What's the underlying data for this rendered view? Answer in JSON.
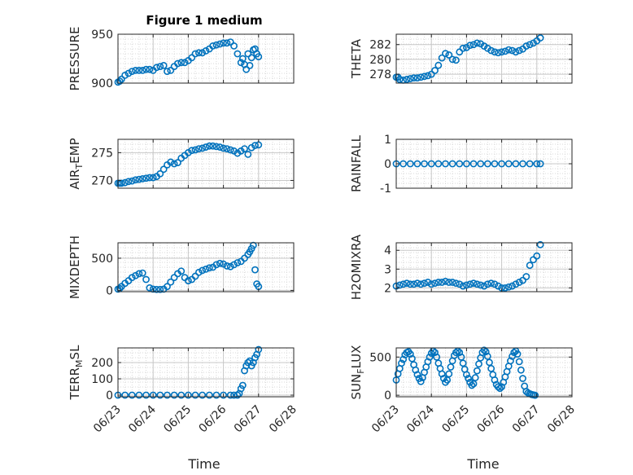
{
  "figure": {
    "title": "Figure 1 medium",
    "xlabel": "Time"
  },
  "chart_data": [
    {
      "type": "scatter",
      "id": "pressure",
      "ylabel": "PRESSURE",
      "ylim": [
        900,
        950
      ],
      "yticks": [
        900,
        950
      ],
      "x": [
        0,
        0.05,
        0.1,
        0.2,
        0.3,
        0.4,
        0.5,
        0.6,
        0.7,
        0.8,
        0.9,
        1.0,
        1.1,
        1.2,
        1.3,
        1.4,
        1.5,
        1.6,
        1.7,
        1.8,
        1.9,
        2.0,
        2.1,
        2.2,
        2.3,
        2.4,
        2.5,
        2.6,
        2.7,
        2.8,
        2.9,
        3.0,
        3.1,
        3.2,
        3.3,
        3.4,
        3.5,
        3.55,
        3.6,
        3.65,
        3.7,
        3.75,
        3.8,
        3.85,
        3.9,
        3.95,
        4.0
      ],
      "y": [
        901,
        902,
        904,
        908,
        910,
        912,
        913,
        913,
        913,
        914,
        914,
        913,
        916,
        917,
        918,
        912,
        913,
        917,
        920,
        921,
        921,
        923,
        926,
        930,
        931,
        931,
        933,
        935,
        938,
        939,
        940,
        941,
        941,
        942,
        938,
        930,
        921,
        925,
        919,
        914,
        930,
        918,
        926,
        934,
        935,
        930,
        927
      ],
      "ylabel_sub": ""
    },
    {
      "type": "scatter",
      "id": "theta",
      "ylabel": "THETA",
      "ylim": [
        276.8,
        283.4
      ],
      "yticks": [
        278,
        280,
        282
      ],
      "x": [
        0,
        0.05,
        0.1,
        0.2,
        0.3,
        0.4,
        0.5,
        0.6,
        0.7,
        0.8,
        0.9,
        1.0,
        1.1,
        1.2,
        1.3,
        1.4,
        1.5,
        1.6,
        1.7,
        1.8,
        1.9,
        2.0,
        2.1,
        2.2,
        2.3,
        2.4,
        2.5,
        2.6,
        2.7,
        2.8,
        2.9,
        3.0,
        3.1,
        3.2,
        3.3,
        3.4,
        3.5,
        3.6,
        3.7,
        3.8,
        3.9,
        4.0,
        4.1
      ],
      "y": [
        277.6,
        277.6,
        277.3,
        277.2,
        277.3,
        277.4,
        277.5,
        277.5,
        277.6,
        277.7,
        277.8,
        278.0,
        278.5,
        279.2,
        280.2,
        280.8,
        280.6,
        280.0,
        279.9,
        281.0,
        281.5,
        281.6,
        281.9,
        282.0,
        282.2,
        282.1,
        281.8,
        281.5,
        281.2,
        281.0,
        280.9,
        281.0,
        281.1,
        281.3,
        281.2,
        281.0,
        281.2,
        281.4,
        281.8,
        282.0,
        282.2,
        282.5,
        282.9
      ]
    },
    {
      "type": "scatter",
      "id": "air_temp",
      "ylabel": "AIR",
      "ylabel_sub": "T",
      "ylabel_rest": "EMP",
      "ylim": [
        268.6,
        277.4
      ],
      "yticks": [
        270,
        275
      ],
      "x": [
        0,
        0.05,
        0.1,
        0.2,
        0.3,
        0.4,
        0.5,
        0.6,
        0.7,
        0.8,
        0.9,
        1.0,
        1.1,
        1.2,
        1.3,
        1.4,
        1.5,
        1.6,
        1.7,
        1.8,
        1.9,
        2.0,
        2.1,
        2.2,
        2.3,
        2.4,
        2.5,
        2.6,
        2.7,
        2.8,
        2.9,
        3.0,
        3.1,
        3.2,
        3.3,
        3.4,
        3.5,
        3.6,
        3.7,
        3.8,
        3.9,
        4.0
      ],
      "y": [
        269.5,
        269.5,
        269.5,
        269.6,
        269.8,
        269.9,
        270.1,
        270.2,
        270.3,
        270.4,
        270.5,
        270.5,
        270.7,
        271.2,
        272.0,
        272.8,
        273.3,
        273.0,
        273.2,
        274.0,
        274.5,
        275.0,
        275.4,
        275.5,
        275.7,
        275.8,
        276.0,
        276.2,
        276.2,
        276.1,
        276.0,
        275.8,
        275.7,
        275.5,
        275.3,
        274.9,
        275.3,
        275.7,
        274.7,
        275.9,
        276.3,
        276.4
      ]
    },
    {
      "type": "scatter",
      "id": "rainfall",
      "ylabel": "RAINFALL",
      "ylim": [
        -1,
        1
      ],
      "yticks": [
        -1,
        0,
        1
      ],
      "x": [
        0,
        0.2,
        0.4,
        0.6,
        0.8,
        1.0,
        1.2,
        1.4,
        1.6,
        1.8,
        2.0,
        2.2,
        2.4,
        2.6,
        2.8,
        3.0,
        3.2,
        3.4,
        3.6,
        3.8,
        4.0,
        4.1
      ],
      "y": [
        0,
        0,
        0,
        0,
        0,
        0,
        0,
        0,
        0,
        0,
        0,
        0,
        0,
        0,
        0,
        0,
        0,
        0,
        0,
        0,
        0,
        0
      ]
    },
    {
      "type": "scatter",
      "id": "mixdepth",
      "ylabel": "MIXDEPTH",
      "ylim": [
        -20,
        740
      ],
      "yticks": [
        0,
        500
      ],
      "x": [
        0,
        0.05,
        0.1,
        0.2,
        0.3,
        0.4,
        0.5,
        0.6,
        0.7,
        0.8,
        0.9,
        1.0,
        1.1,
        1.2,
        1.3,
        1.4,
        1.5,
        1.6,
        1.7,
        1.8,
        1.9,
        2.0,
        2.1,
        2.2,
        2.3,
        2.4,
        2.5,
        2.6,
        2.7,
        2.8,
        2.9,
        3.0,
        3.1,
        3.2,
        3.3,
        3.4,
        3.5,
        3.6,
        3.7,
        3.75,
        3.8,
        3.85,
        3.9,
        3.95,
        4.0
      ],
      "y": [
        20,
        30,
        60,
        110,
        150,
        200,
        230,
        260,
        270,
        170,
        40,
        20,
        15,
        15,
        20,
        60,
        130,
        200,
        260,
        300,
        200,
        150,
        170,
        220,
        280,
        310,
        330,
        350,
        360,
        400,
        420,
        410,
        380,
        370,
        400,
        430,
        450,
        500,
        560,
        600,
        650,
        700,
        320,
        100,
        60
      ]
    },
    {
      "type": "scatter",
      "id": "h2omixra",
      "ylabel": "H2OMIXRA",
      "ylim": [
        1.8,
        4.4
      ],
      "yticks": [
        2,
        3,
        4
      ],
      "x": [
        0,
        0.1,
        0.2,
        0.3,
        0.4,
        0.5,
        0.6,
        0.7,
        0.8,
        0.9,
        1.0,
        1.1,
        1.2,
        1.3,
        1.4,
        1.5,
        1.6,
        1.7,
        1.8,
        1.9,
        2.0,
        2.1,
        2.2,
        2.3,
        2.4,
        2.5,
        2.6,
        2.7,
        2.8,
        2.9,
        3.0,
        3.1,
        3.2,
        3.3,
        3.4,
        3.5,
        3.6,
        3.7,
        3.8,
        3.9,
        4.0,
        4.1
      ],
      "y": [
        2.1,
        2.15,
        2.2,
        2.25,
        2.2,
        2.2,
        2.25,
        2.2,
        2.25,
        2.3,
        2.2,
        2.25,
        2.3,
        2.3,
        2.35,
        2.3,
        2.3,
        2.25,
        2.2,
        2.1,
        2.15,
        2.2,
        2.25,
        2.2,
        2.15,
        2.1,
        2.2,
        2.25,
        2.2,
        2.1,
        2.0,
        2.0,
        2.05,
        2.1,
        2.2,
        2.3,
        2.4,
        2.6,
        3.2,
        3.5,
        3.7,
        4.3
      ]
    },
    {
      "type": "scatter",
      "id": "terr_msl",
      "ylabel": "TERR",
      "ylabel_sub": "M",
      "ylabel_rest": "SL",
      "ylim": [
        -10,
        290
      ],
      "yticks": [
        0,
        100,
        200
      ],
      "x": [
        0,
        0.2,
        0.4,
        0.6,
        0.8,
        1.0,
        1.2,
        1.4,
        1.6,
        1.8,
        2.0,
        2.2,
        2.4,
        2.6,
        2.8,
        3.0,
        3.2,
        3.3,
        3.4,
        3.45,
        3.5,
        3.55,
        3.6,
        3.65,
        3.7,
        3.75,
        3.8,
        3.85,
        3.9,
        3.95,
        4.0
      ],
      "y": [
        0,
        0,
        0,
        0,
        0,
        0,
        0,
        0,
        0,
        0,
        0,
        0,
        0,
        0,
        0,
        0,
        0,
        0,
        0,
        10,
        40,
        60,
        150,
        180,
        200,
        210,
        180,
        200,
        230,
        250,
        280
      ]
    },
    {
      "type": "scatter",
      "id": "sunflux",
      "ylabel": "SUN",
      "ylabel_sub": "F",
      "ylabel_rest": "LUX",
      "ylim": [
        -20,
        620
      ],
      "yticks": [
        0,
        500
      ],
      "x": [
        0,
        0.05,
        0.1,
        0.15,
        0.2,
        0.25,
        0.3,
        0.35,
        0.4,
        0.45,
        0.5,
        0.55,
        0.6,
        0.65,
        0.7,
        0.75,
        0.8,
        0.85,
        0.9,
        0.95,
        1.0,
        1.05,
        1.1,
        1.15,
        1.2,
        1.25,
        1.3,
        1.35,
        1.4,
        1.45,
        1.5,
        1.55,
        1.6,
        1.65,
        1.7,
        1.75,
        1.8,
        1.85,
        1.9,
        1.95,
        2.0,
        2.05,
        2.1,
        2.15,
        2.2,
        2.25,
        2.3,
        2.35,
        2.4,
        2.45,
        2.5,
        2.55,
        2.6,
        2.65,
        2.7,
        2.75,
        2.8,
        2.85,
        2.9,
        2.95,
        3.0,
        3.05,
        3.1,
        3.15,
        3.2,
        3.25,
        3.3,
        3.35,
        3.4,
        3.45,
        3.5,
        3.55,
        3.6,
        3.65,
        3.7,
        3.75,
        3.8,
        3.85,
        3.9,
        3.95
      ],
      "y": [
        200,
        280,
        350,
        420,
        470,
        530,
        560,
        570,
        540,
        480,
        400,
        330,
        270,
        220,
        180,
        230,
        300,
        370,
        440,
        500,
        550,
        580,
        560,
        500,
        420,
        350,
        280,
        220,
        170,
        200,
        280,
        370,
        450,
        520,
        560,
        580,
        560,
        500,
        420,
        340,
        270,
        220,
        170,
        130,
        150,
        230,
        320,
        410,
        490,
        560,
        590,
        570,
        510,
        430,
        350,
        270,
        200,
        140,
        110,
        90,
        110,
        170,
        240,
        310,
        380,
        450,
        510,
        560,
        580,
        540,
        440,
        330,
        220,
        120,
        50,
        30,
        20,
        10,
        5,
        0
      ]
    }
  ],
  "xaxis": {
    "ticks": [
      0,
      1,
      2,
      3,
      4,
      5
    ],
    "labels": [
      "06/23",
      "06/24",
      "06/25",
      "06/26",
      "06/27",
      "06/28"
    ],
    "xlim": [
      0,
      5
    ]
  }
}
